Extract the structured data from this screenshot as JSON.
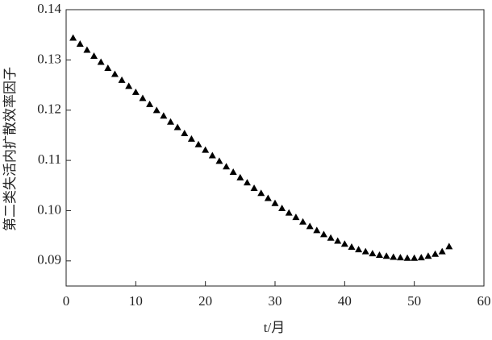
{
  "chart_data": {
    "type": "scatter",
    "xlabel": "t/月",
    "ylabel": "第二类失活内扩散效率因子",
    "x": [
      1,
      2,
      3,
      4,
      5,
      6,
      7,
      8,
      9,
      10,
      11,
      12,
      13,
      14,
      15,
      16,
      17,
      18,
      19,
      20,
      21,
      22,
      23,
      24,
      25,
      26,
      27,
      28,
      29,
      30,
      31,
      32,
      33,
      34,
      35,
      36,
      37,
      38,
      39,
      40,
      41,
      42,
      43,
      44,
      45,
      46,
      47,
      48,
      49,
      50,
      51,
      52,
      53,
      54,
      55
    ],
    "series": [
      {
        "color": "#000000",
        "values": [
          0.1343,
          0.1331,
          0.1319,
          0.1307,
          0.1295,
          0.1283,
          0.1271,
          0.1259,
          0.1247,
          0.1235,
          0.1223,
          0.1211,
          0.1199,
          0.1188,
          0.1176,
          0.1165,
          0.1153,
          0.1142,
          0.1131,
          0.112,
          0.1109,
          0.1098,
          0.1087,
          0.1076,
          0.1065,
          0.1055,
          0.1044,
          0.1034,
          0.1024,
          0.1014,
          0.1004,
          0.0995,
          0.0986,
          0.0977,
          0.0968,
          0.096,
          0.0952,
          0.0945,
          0.0939,
          0.0933,
          0.0927,
          0.0922,
          0.0918,
          0.0914,
          0.0911,
          0.0909,
          0.0907,
          0.0906,
          0.0905,
          0.0905,
          0.0906,
          0.0909,
          0.0913,
          0.0918,
          0.0928
        ]
      }
    ],
    "xlim": [
      0,
      60
    ],
    "xticks": [
      0,
      10,
      20,
      30,
      40,
      50,
      60
    ],
    "ylim": [
      0.085,
      0.14
    ],
    "yticks": [
      0.09,
      {
        "value": 0.1,
        "label": "0.10"
      },
      0.11,
      0.12,
      0.13,
      0.14
    ]
  }
}
